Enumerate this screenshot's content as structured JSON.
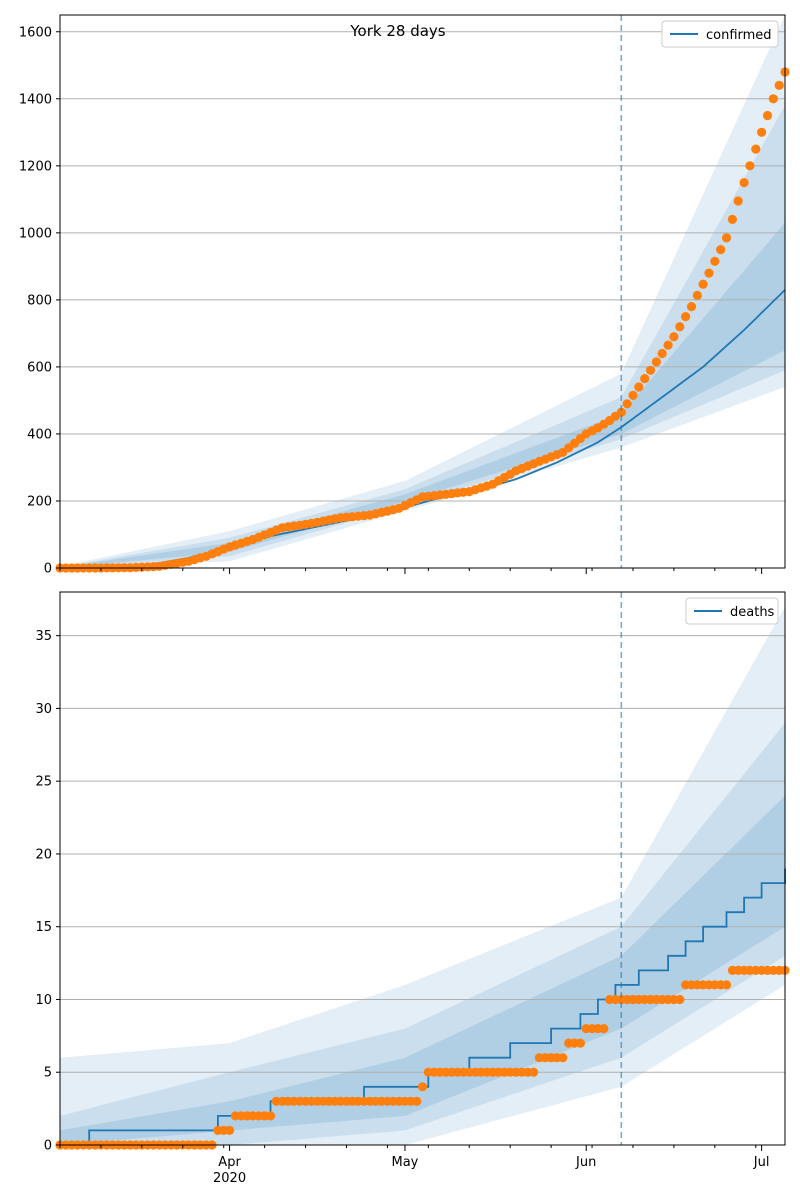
{
  "chart_data": [
    {
      "type": "line",
      "title": "York 28 days",
      "xlabel": "",
      "ylabel": "",
      "ylim": [
        0,
        1650
      ],
      "yticks": [
        0,
        200,
        400,
        600,
        800,
        1000,
        1200,
        1400,
        1600
      ],
      "grid": "y",
      "legend_position": "top-right",
      "forecast_start": "2020-06-07",
      "series": [
        {
          "name": "confirmed",
          "kind": "median-line",
          "color": "#1f77b4",
          "points": [
            [
              "2020-03-03",
              0
            ],
            [
              "2020-03-10",
              2
            ],
            [
              "2020-03-15",
              6
            ],
            [
              "2020-03-20",
              15
            ],
            [
              "2020-03-25",
              30
            ],
            [
              "2020-04-01",
              60
            ],
            [
              "2020-04-08",
              95
            ],
            [
              "2020-04-15",
              120
            ],
            [
              "2020-04-22",
              145
            ],
            [
              "2020-04-29",
              170
            ],
            [
              "2020-05-06",
              205
            ],
            [
              "2020-05-13",
              230
            ],
            [
              "2020-05-20",
              265
            ],
            [
              "2020-05-27",
              315
            ],
            [
              "2020-06-03",
              375
            ],
            [
              "2020-06-07",
              420
            ],
            [
              "2020-06-14",
              510
            ],
            [
              "2020-06-21",
              600
            ],
            [
              "2020-06-28",
              710
            ],
            [
              "2020-07-05",
              830
            ]
          ]
        },
        {
          "name": "",
          "kind": "observed-dots",
          "color": "#ff7f0e",
          "points": [
            [
              "2020-03-03",
              0
            ],
            [
              "2020-03-10",
              0
            ],
            [
              "2020-03-15",
              1
            ],
            [
              "2020-03-20",
              5
            ],
            [
              "2020-03-25",
              20
            ],
            [
              "2020-03-28",
              35
            ],
            [
              "2020-04-01",
              63
            ],
            [
              "2020-04-05",
              85
            ],
            [
              "2020-04-10",
              120
            ],
            [
              "2020-04-15",
              133
            ],
            [
              "2020-04-20",
              150
            ],
            [
              "2020-04-25",
              158
            ],
            [
              "2020-04-30",
              178
            ],
            [
              "2020-05-04",
              212
            ],
            [
              "2020-05-08",
              220
            ],
            [
              "2020-05-12",
              228
            ],
            [
              "2020-05-16",
              250
            ],
            [
              "2020-05-20",
              290
            ],
            [
              "2020-05-24",
              318
            ],
            [
              "2020-05-28",
              345
            ],
            [
              "2020-06-01",
              400
            ],
            [
              "2020-06-03",
              418
            ],
            [
              "2020-06-05",
              440
            ],
            [
              "2020-06-07",
              465
            ],
            [
              "2020-06-10",
              540
            ],
            [
              "2020-06-13",
              615
            ],
            [
              "2020-06-16",
              690
            ],
            [
              "2020-06-19",
              780
            ],
            [
              "2020-06-22",
              880
            ],
            [
              "2020-06-25",
              985
            ],
            [
              "2020-06-28",
              1150
            ],
            [
              "2020-07-01",
              1300
            ],
            [
              "2020-07-03",
              1400
            ],
            [
              "2020-07-05",
              1480
            ]
          ]
        }
      ],
      "bands": [
        {
          "level": "outer",
          "lower": [
            [
              "2020-03-03",
              0
            ],
            [
              "2020-04-01",
              20
            ],
            [
              "2020-05-01",
              170
            ],
            [
              "2020-06-07",
              360
            ],
            [
              "2020-07-05",
              540
            ]
          ],
          "upper": [
            [
              "2020-03-03",
              5
            ],
            [
              "2020-04-01",
              110
            ],
            [
              "2020-05-01",
              260
            ],
            [
              "2020-06-07",
              580
            ],
            [
              "2020-07-05",
              1650
            ]
          ]
        },
        {
          "level": "middle",
          "lower": [
            [
              "2020-03-03",
              0
            ],
            [
              "2020-04-01",
              35
            ],
            [
              "2020-05-01",
              185
            ],
            [
              "2020-06-07",
              385
            ],
            [
              "2020-07-05",
              590
            ]
          ],
          "upper": [
            [
              "2020-03-03",
              3
            ],
            [
              "2020-04-01",
              90
            ],
            [
              "2020-05-01",
              235
            ],
            [
              "2020-06-07",
              510
            ],
            [
              "2020-07-05",
              1380
            ]
          ]
        },
        {
          "level": "inner",
          "lower": [
            [
              "2020-03-03",
              0
            ],
            [
              "2020-04-01",
              48
            ],
            [
              "2020-05-01",
              198
            ],
            [
              "2020-06-07",
              400
            ],
            [
              "2020-07-05",
              650
            ]
          ],
          "upper": [
            [
              "2020-03-03",
              2
            ],
            [
              "2020-04-01",
              75
            ],
            [
              "2020-05-01",
              220
            ],
            [
              "2020-06-07",
              460
            ],
            [
              "2020-07-05",
              1030
            ]
          ]
        }
      ]
    },
    {
      "type": "line",
      "title": "",
      "xlabel": "",
      "ylabel": "",
      "ylim": [
        0,
        38
      ],
      "yticks": [
        0,
        5,
        10,
        15,
        20,
        25,
        30,
        35
      ],
      "grid": "y",
      "legend_position": "top-right",
      "forecast_start": "2020-06-07",
      "series": [
        {
          "name": "deaths",
          "kind": "median-step",
          "color": "#1f77b4",
          "points": [
            [
              "2020-03-03",
              0
            ],
            [
              "2020-03-06",
              0
            ],
            [
              "2020-03-08",
              1
            ],
            [
              "2020-03-30",
              2
            ],
            [
              "2020-04-08",
              3
            ],
            [
              "2020-04-24",
              4
            ],
            [
              "2020-05-05",
              5
            ],
            [
              "2020-05-12",
              6
            ],
            [
              "2020-05-19",
              7
            ],
            [
              "2020-05-26",
              8
            ],
            [
              "2020-05-31",
              9
            ],
            [
              "2020-06-03",
              10
            ],
            [
              "2020-06-06",
              11
            ],
            [
              "2020-06-10",
              12
            ],
            [
              "2020-06-15",
              13
            ],
            [
              "2020-06-18",
              14
            ],
            [
              "2020-06-21",
              15
            ],
            [
              "2020-06-25",
              16
            ],
            [
              "2020-06-28",
              17
            ],
            [
              "2020-07-01",
              18
            ],
            [
              "2020-07-05",
              19
            ]
          ]
        },
        {
          "name": "",
          "kind": "observed-dots",
          "color": "#ff7f0e",
          "points": [
            [
              "2020-03-03",
              0
            ],
            [
              "2020-03-29",
              0
            ],
            [
              "2020-03-30",
              1
            ],
            [
              "2020-04-02",
              2
            ],
            [
              "2020-04-09",
              3
            ],
            [
              "2020-05-04",
              4
            ],
            [
              "2020-05-05",
              5
            ],
            [
              "2020-05-24",
              6
            ],
            [
              "2020-05-29",
              7
            ],
            [
              "2020-06-01",
              8
            ],
            [
              "2020-06-05",
              10
            ],
            [
              "2020-06-18",
              11
            ],
            [
              "2020-06-26",
              12
            ],
            [
              "2020-07-05",
              12
            ]
          ]
        }
      ],
      "bands": [
        {
          "level": "outer",
          "lower": [
            [
              "2020-03-03",
              0
            ],
            [
              "2020-04-01",
              0
            ],
            [
              "2020-05-01",
              0
            ],
            [
              "2020-06-07",
              4
            ],
            [
              "2020-07-05",
              11
            ]
          ],
          "upper": [
            [
              "2020-03-03",
              6
            ],
            [
              "2020-04-01",
              7
            ],
            [
              "2020-05-01",
              11
            ],
            [
              "2020-06-07",
              17
            ],
            [
              "2020-07-05",
              37
            ]
          ]
        },
        {
          "level": "middle",
          "lower": [
            [
              "2020-03-03",
              0
            ],
            [
              "2020-04-01",
              0
            ],
            [
              "2020-05-01",
              1
            ],
            [
              "2020-06-07",
              6
            ],
            [
              "2020-07-05",
              13
            ]
          ],
          "upper": [
            [
              "2020-03-03",
              2
            ],
            [
              "2020-04-01",
              5
            ],
            [
              "2020-05-01",
              8
            ],
            [
              "2020-06-07",
              15
            ],
            [
              "2020-07-05",
              29
            ]
          ]
        },
        {
          "level": "inner",
          "lower": [
            [
              "2020-03-03",
              0
            ],
            [
              "2020-04-01",
              1
            ],
            [
              "2020-05-01",
              2
            ],
            [
              "2020-06-07",
              8
            ],
            [
              "2020-07-05",
              15
            ]
          ],
          "upper": [
            [
              "2020-03-03",
              1
            ],
            [
              "2020-04-01",
              3
            ],
            [
              "2020-05-01",
              6
            ],
            [
              "2020-06-07",
              13
            ],
            [
              "2020-07-05",
              24
            ]
          ]
        }
      ]
    }
  ],
  "x_axis": {
    "start": "2020-03-03",
    "end": "2020-07-05",
    "tick_labels": [
      {
        "date": "2020-04-01",
        "label": "Apr"
      },
      {
        "date": "2020-05-01",
        "label": "May"
      },
      {
        "date": "2020-06-01",
        "label": "Jun"
      },
      {
        "date": "2020-07-01",
        "label": "Jul"
      }
    ],
    "year_label": "2020"
  }
}
